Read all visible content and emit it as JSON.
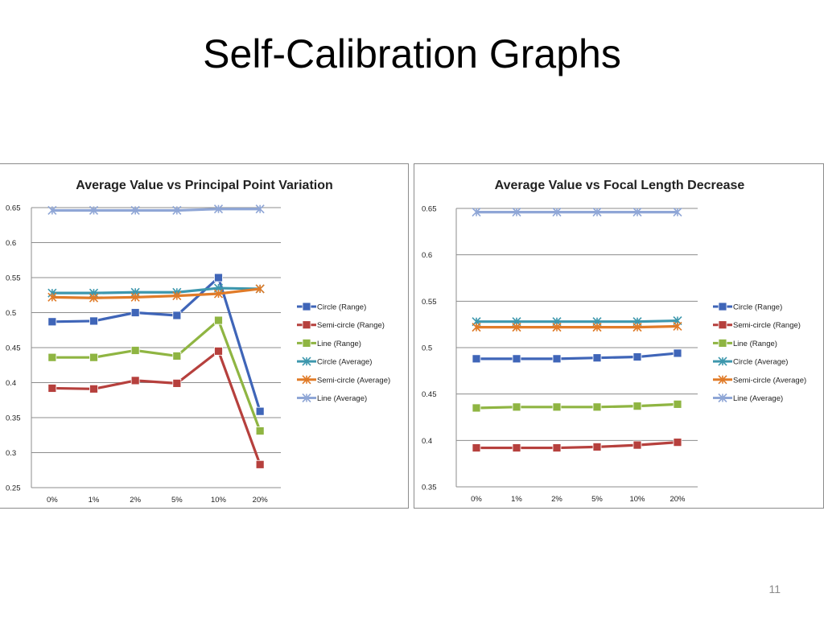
{
  "slide": {
    "title": "Self-Calibration Graphs",
    "page_number": "11"
  },
  "chart_data": [
    {
      "type": "line",
      "title": "Average Value vs Principal Point Variation",
      "categories": [
        "0%",
        "1%",
        "2%",
        "5%",
        "10%",
        "20%"
      ],
      "ylim": [
        0.25,
        0.65
      ],
      "yticks": [
        "0.25",
        "0.3",
        "0.35",
        "0.4",
        "0.45",
        "0.5",
        "0.55",
        "0.6",
        "0.65"
      ],
      "grid": true,
      "legend_position": "right",
      "series": [
        {
          "name": "Circle (Range)",
          "marker": "square",
          "color": "#3f65b8",
          "values": [
            0.487,
            0.488,
            0.5,
            0.496,
            0.55,
            0.359
          ]
        },
        {
          "name": "Semi-circle (Range)",
          "marker": "square",
          "color": "#b6403d",
          "values": [
            0.392,
            0.391,
            0.403,
            0.399,
            0.445,
            0.283
          ]
        },
        {
          "name": "Line (Range)",
          "marker": "square",
          "color": "#8fb542",
          "values": [
            0.436,
            0.436,
            0.446,
            0.438,
            0.489,
            0.331
          ]
        },
        {
          "name": "Circle (Average)",
          "marker": "star",
          "color": "#3d97ad",
          "values": [
            0.528,
            0.528,
            0.529,
            0.529,
            0.535,
            0.534
          ]
        },
        {
          "name": "Semi-circle (Average)",
          "marker": "star",
          "color": "#e07b28",
          "values": [
            0.522,
            0.521,
            0.522,
            0.524,
            0.527,
            0.534
          ]
        },
        {
          "name": "Line (Average)",
          "marker": "star",
          "color": "#8fa6d6",
          "values": [
            0.646,
            0.646,
            0.646,
            0.646,
            0.648,
            0.648
          ]
        }
      ]
    },
    {
      "type": "line",
      "title": "Average Value vs Focal Length Decrease",
      "categories": [
        "0%",
        "1%",
        "2%",
        "5%",
        "10%",
        "20%"
      ],
      "ylim": [
        0.35,
        0.65
      ],
      "yticks": [
        "0.35",
        "0.4",
        "0.45",
        "0.5",
        "0.55",
        "0.6",
        "0.65"
      ],
      "grid": true,
      "legend_position": "right",
      "series": [
        {
          "name": "Circle (Range)",
          "marker": "square",
          "color": "#3f65b8",
          "values": [
            0.488,
            0.488,
            0.488,
            0.489,
            0.49,
            0.494
          ]
        },
        {
          "name": "Semi-circle (Range)",
          "marker": "square",
          "color": "#b6403d",
          "values": [
            0.392,
            0.392,
            0.392,
            0.393,
            0.395,
            0.398
          ]
        },
        {
          "name": "Line (Range)",
          "marker": "square",
          "color": "#8fb542",
          "values": [
            0.435,
            0.436,
            0.436,
            0.436,
            0.437,
            0.439
          ]
        },
        {
          "name": "Circle (Average)",
          "marker": "star",
          "color": "#3d97ad",
          "values": [
            0.528,
            0.528,
            0.528,
            0.528,
            0.528,
            0.529
          ]
        },
        {
          "name": "Semi-circle (Average)",
          "marker": "star",
          "color": "#e07b28",
          "values": [
            0.522,
            0.522,
            0.522,
            0.522,
            0.522,
            0.523
          ]
        },
        {
          "name": "Line (Average)",
          "marker": "star",
          "color": "#8fa6d6",
          "values": [
            0.646,
            0.646,
            0.646,
            0.646,
            0.646,
            0.646
          ]
        }
      ]
    }
  ]
}
